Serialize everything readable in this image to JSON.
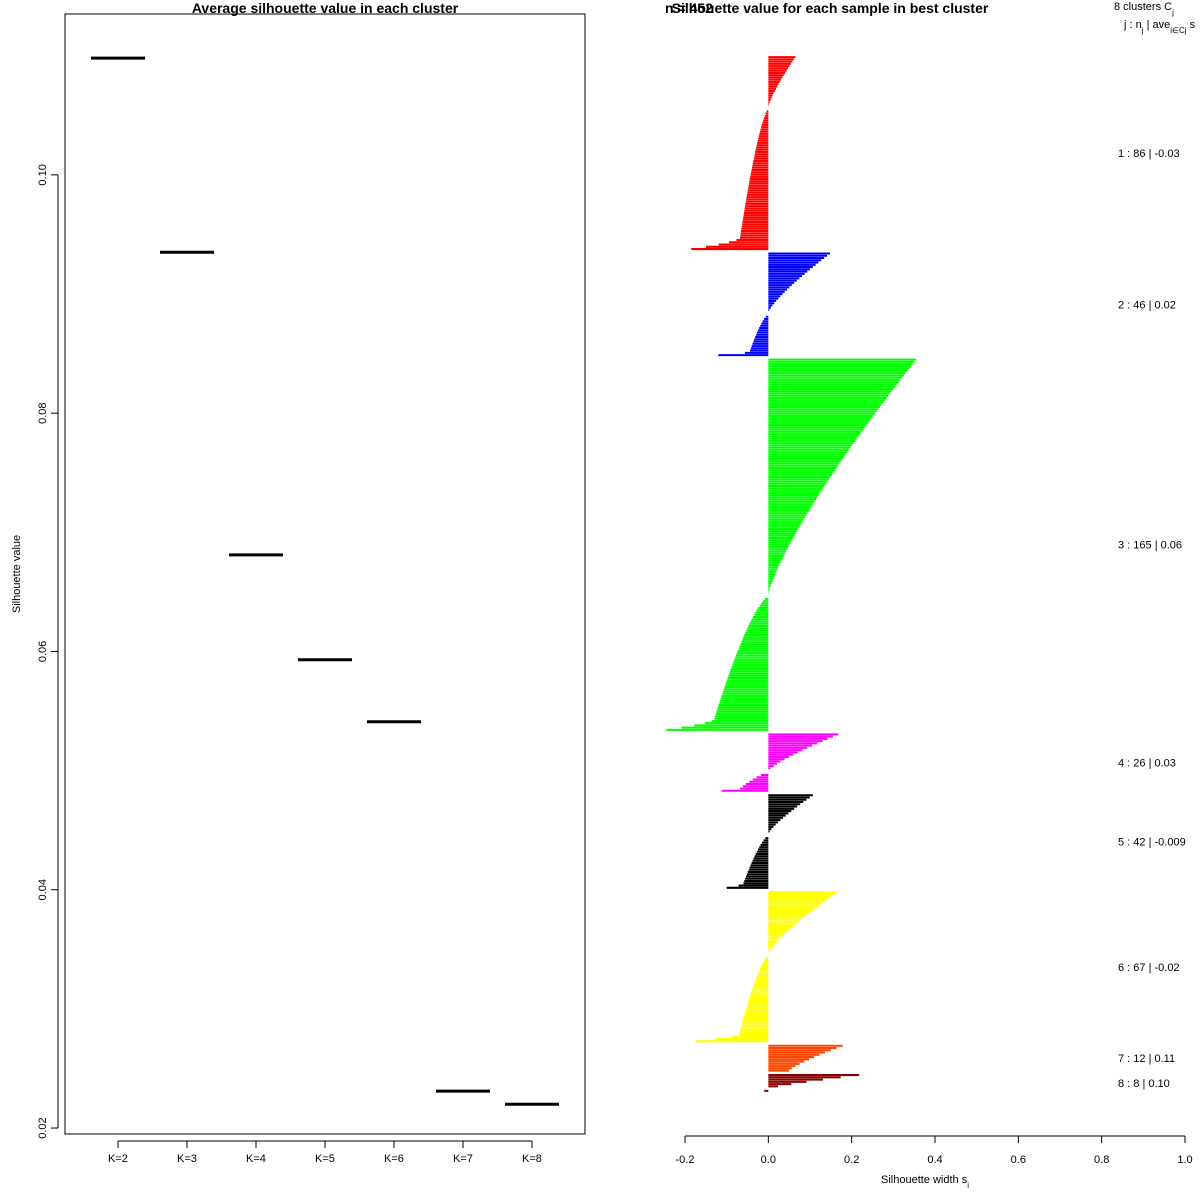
{
  "chart_data": [
    {
      "type": "scatter",
      "title": "Average silhouette value in each cluster",
      "xlabel": "",
      "ylabel": "Silhouette value",
      "categories": [
        "K=2",
        "K=3",
        "K=4",
        "K=5",
        "K=6",
        "K=7",
        "K=8"
      ],
      "values": [
        0.1098,
        0.0935,
        0.0681,
        0.0593,
        0.0541,
        0.0231,
        0.022
      ],
      "y_ticks": [
        "0.02",
        "0.04",
        "0.06",
        "0.08",
        "0.10"
      ],
      "ylim": [
        0.0195,
        0.1135
      ],
      "grid": false,
      "legend": "none"
    },
    {
      "type": "bar",
      "orientation": "horizontal",
      "title": "Silhouette value for each sample in best cluster",
      "title_overlap_text": "n = 452",
      "xlabel": "Silhouette width s",
      "xlabel_subscript": "i",
      "xlim": [
        -0.2,
        1.0
      ],
      "x_ticks": [
        "-0.2",
        "0.0",
        "0.2",
        "0.4",
        "0.6",
        "0.8",
        "1.0"
      ],
      "header_line1": "8  clusters  C",
      "header_line1_sub": "j",
      "header_line2": "j :  n",
      "header_line2_sub1": "j",
      "header_line2_mid": " | ave",
      "header_line2_sub2": "i∈Cj",
      "header_line2_tail": "  s",
      "clusters": [
        {
          "id": 1,
          "label": "1 :  86  |  -0.03",
          "color": "#ff0000",
          "n": 86,
          "ave": -0.03,
          "max_s": 0.065,
          "min_s": -0.185,
          "pos_frac": 0.265,
          "plateau": -0.068
        },
        {
          "id": 2,
          "label": "2 :  46  |  0.02",
          "color": "#0000ff",
          "n": 46,
          "ave": 0.02,
          "max_s": 0.148,
          "min_s": -0.12,
          "pos_frac": 0.595,
          "plateau": -0.045
        },
        {
          "id": 3,
          "label": "3 :  165  |  0.06",
          "color": "#00ff00",
          "n": 165,
          "ave": 0.06,
          "max_s": 0.355,
          "min_s": -0.245,
          "pos_frac": 0.635,
          "plateau": -0.13
        },
        {
          "id": 4,
          "label": "4 :  26  |  0.03",
          "color": "#ff00ff",
          "n": 26,
          "ave": 0.03,
          "max_s": 0.168,
          "min_s": -0.112,
          "pos_frac": 0.66,
          "plateau": -0.07
        },
        {
          "id": 5,
          "label": "5 :  42  |  -0.009",
          "color": "#000000",
          "n": 42,
          "ave": -0.009,
          "max_s": 0.107,
          "min_s": -0.1,
          "pos_frac": 0.42,
          "plateau": -0.06
        },
        {
          "id": 6,
          "label": "6 :  67  |  -0.02",
          "color": "#ffff00",
          "n": 67,
          "ave": -0.02,
          "max_s": 0.165,
          "min_s": -0.175,
          "pos_frac": 0.42,
          "plateau": -0.07
        },
        {
          "id": 7,
          "label": "7 :  12  |  0.11",
          "color": "#ff4500",
          "n": 12,
          "ave": 0.11,
          "max_s": 0.178,
          "min_s": 0.05,
          "pos_frac": 1.0,
          "plateau": 0.1
        },
        {
          "id": 8,
          "label": "8 :  8  |  0.10",
          "color": "#8b0000",
          "n": 8,
          "ave": 0.1,
          "max_s": 0.218,
          "min_s": -0.01,
          "pos_frac": 0.88,
          "plateau": 0.05
        }
      ],
      "grid": false,
      "legend": "right"
    }
  ]
}
